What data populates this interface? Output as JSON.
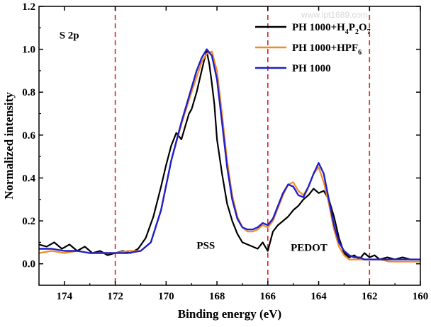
{
  "chart_data": {
    "type": "line",
    "title": "",
    "xlabel": "Binding energy (eV)",
    "ylabel": "Normalized intensity",
    "xlim": [
      175,
      160
    ],
    "ylim": [
      -0.1,
      1.2
    ],
    "x_ticks": [
      174,
      172,
      170,
      168,
      166,
      164,
      162,
      160
    ],
    "y_ticks": [
      0.0,
      0.2,
      0.4,
      0.6,
      0.8,
      1.0,
      1.2
    ],
    "x_tick_labels": [
      "174",
      "172",
      "170",
      "168",
      "166",
      "164",
      "162",
      "160"
    ],
    "y_tick_labels": [
      "0.0",
      "0.2",
      "0.4",
      "0.6",
      "0.8",
      "1.0",
      "1.2"
    ],
    "reference_lines": [
      172,
      166,
      162
    ],
    "reference_line_color": "#e02020",
    "annotations": [
      {
        "text": "S 2p",
        "x": 174.2,
        "y": 1.05
      },
      {
        "text": "PSS",
        "x": 168.8,
        "y": 0.07
      },
      {
        "text": "PEDOT",
        "x": 165.1,
        "y": 0.06
      }
    ],
    "watermark": "www.ipt1689.com",
    "legend_position": "top-right",
    "series": [
      {
        "name": "PH 1000+H4P2O7",
        "legend_main": "PH 1000+H",
        "legend_parts": [
          [
            "4",
            "P"
          ],
          [
            "2",
            "O"
          ],
          [
            "7",
            ""
          ]
        ],
        "color": "#000000",
        "x": [
          175.0,
          174.7,
          174.4,
          174.1,
          173.8,
          173.5,
          173.2,
          172.9,
          172.6,
          172.3,
          172.0,
          171.7,
          171.4,
          171.1,
          170.8,
          170.5,
          170.2,
          170.0,
          169.8,
          169.6,
          169.4,
          169.2,
          169.1,
          169.0,
          168.8,
          168.6,
          168.5,
          168.4,
          168.3,
          168.2,
          168.1,
          168.0,
          167.8,
          167.6,
          167.4,
          167.2,
          167.0,
          166.8,
          166.6,
          166.4,
          166.2,
          166.0,
          165.8,
          165.6,
          165.4,
          165.2,
          165.0,
          164.8,
          164.6,
          164.4,
          164.2,
          164.0,
          163.8,
          163.6,
          163.4,
          163.2,
          163.0,
          162.8,
          162.6,
          162.4,
          162.2,
          162.0,
          161.8,
          161.6,
          161.3,
          161.0,
          160.7,
          160.4,
          160.0
        ],
        "y": [
          0.09,
          0.08,
          0.1,
          0.07,
          0.09,
          0.06,
          0.08,
          0.05,
          0.06,
          0.04,
          0.05,
          0.06,
          0.05,
          0.07,
          0.12,
          0.22,
          0.36,
          0.46,
          0.55,
          0.61,
          0.58,
          0.66,
          0.7,
          0.72,
          0.8,
          0.9,
          0.95,
          0.99,
          0.93,
          0.84,
          0.74,
          0.58,
          0.42,
          0.28,
          0.2,
          0.14,
          0.1,
          0.09,
          0.08,
          0.07,
          0.1,
          0.06,
          0.15,
          0.18,
          0.2,
          0.22,
          0.25,
          0.27,
          0.3,
          0.32,
          0.35,
          0.33,
          0.34,
          0.3,
          0.22,
          0.12,
          0.05,
          0.03,
          0.04,
          0.02,
          0.05,
          0.03,
          0.04,
          0.02,
          0.03,
          0.02,
          0.03,
          0.02,
          0.02
        ]
      },
      {
        "name": "PH 1000+HPF6",
        "legend_main": "PH 1000+HPF",
        "legend_parts": [
          [
            "6",
            ""
          ]
        ],
        "color": "#f08c28",
        "x": [
          175.0,
          174.5,
          174.0,
          173.5,
          173.0,
          172.5,
          172.0,
          171.5,
          171.0,
          170.6,
          170.2,
          169.8,
          169.4,
          169.0,
          168.8,
          168.6,
          168.4,
          168.2,
          168.0,
          167.8,
          167.6,
          167.4,
          167.2,
          167.0,
          166.8,
          166.6,
          166.4,
          166.2,
          166.0,
          165.8,
          165.6,
          165.4,
          165.2,
          165.0,
          164.8,
          164.6,
          164.4,
          164.2,
          164.0,
          163.8,
          163.6,
          163.4,
          163.2,
          163.0,
          162.8,
          162.6,
          162.4,
          162.2,
          162.0,
          161.6,
          161.2,
          160.8,
          160.4,
          160.0
        ],
        "y": [
          0.05,
          0.06,
          0.05,
          0.06,
          0.05,
          0.05,
          0.05,
          0.06,
          0.06,
          0.1,
          0.25,
          0.48,
          0.65,
          0.8,
          0.87,
          0.94,
          0.98,
          0.99,
          0.9,
          0.7,
          0.48,
          0.32,
          0.22,
          0.17,
          0.15,
          0.15,
          0.16,
          0.18,
          0.17,
          0.2,
          0.26,
          0.32,
          0.37,
          0.38,
          0.34,
          0.32,
          0.36,
          0.42,
          0.45,
          0.38,
          0.28,
          0.16,
          0.08,
          0.04,
          0.02,
          0.02,
          0.02,
          0.02,
          0.02,
          0.02,
          0.01,
          0.01,
          0.01,
          0.01
        ]
      },
      {
        "name": "PH 1000",
        "legend_main": "PH 1000",
        "legend_parts": [],
        "color": "#2020c8",
        "x": [
          175.0,
          174.5,
          174.0,
          173.5,
          173.0,
          172.5,
          172.0,
          171.5,
          171.0,
          170.6,
          170.2,
          169.8,
          169.4,
          169.0,
          168.8,
          168.6,
          168.4,
          168.2,
          168.0,
          167.8,
          167.6,
          167.4,
          167.2,
          167.0,
          166.8,
          166.6,
          166.4,
          166.2,
          166.0,
          165.8,
          165.6,
          165.4,
          165.2,
          165.0,
          164.8,
          164.6,
          164.4,
          164.2,
          164.0,
          163.8,
          163.6,
          163.4,
          163.2,
          163.0,
          162.8,
          162.6,
          162.4,
          162.2,
          162.0,
          161.6,
          161.2,
          160.8,
          160.4,
          160.0
        ],
        "y": [
          0.07,
          0.07,
          0.06,
          0.06,
          0.05,
          0.05,
          0.05,
          0.05,
          0.06,
          0.1,
          0.25,
          0.48,
          0.66,
          0.82,
          0.9,
          0.96,
          1.0,
          0.97,
          0.86,
          0.66,
          0.45,
          0.3,
          0.21,
          0.17,
          0.16,
          0.16,
          0.17,
          0.19,
          0.18,
          0.21,
          0.27,
          0.33,
          0.37,
          0.36,
          0.32,
          0.31,
          0.36,
          0.42,
          0.47,
          0.42,
          0.3,
          0.18,
          0.1,
          0.06,
          0.04,
          0.03,
          0.03,
          0.02,
          0.02,
          0.02,
          0.02,
          0.02,
          0.02,
          0.02
        ]
      }
    ]
  }
}
